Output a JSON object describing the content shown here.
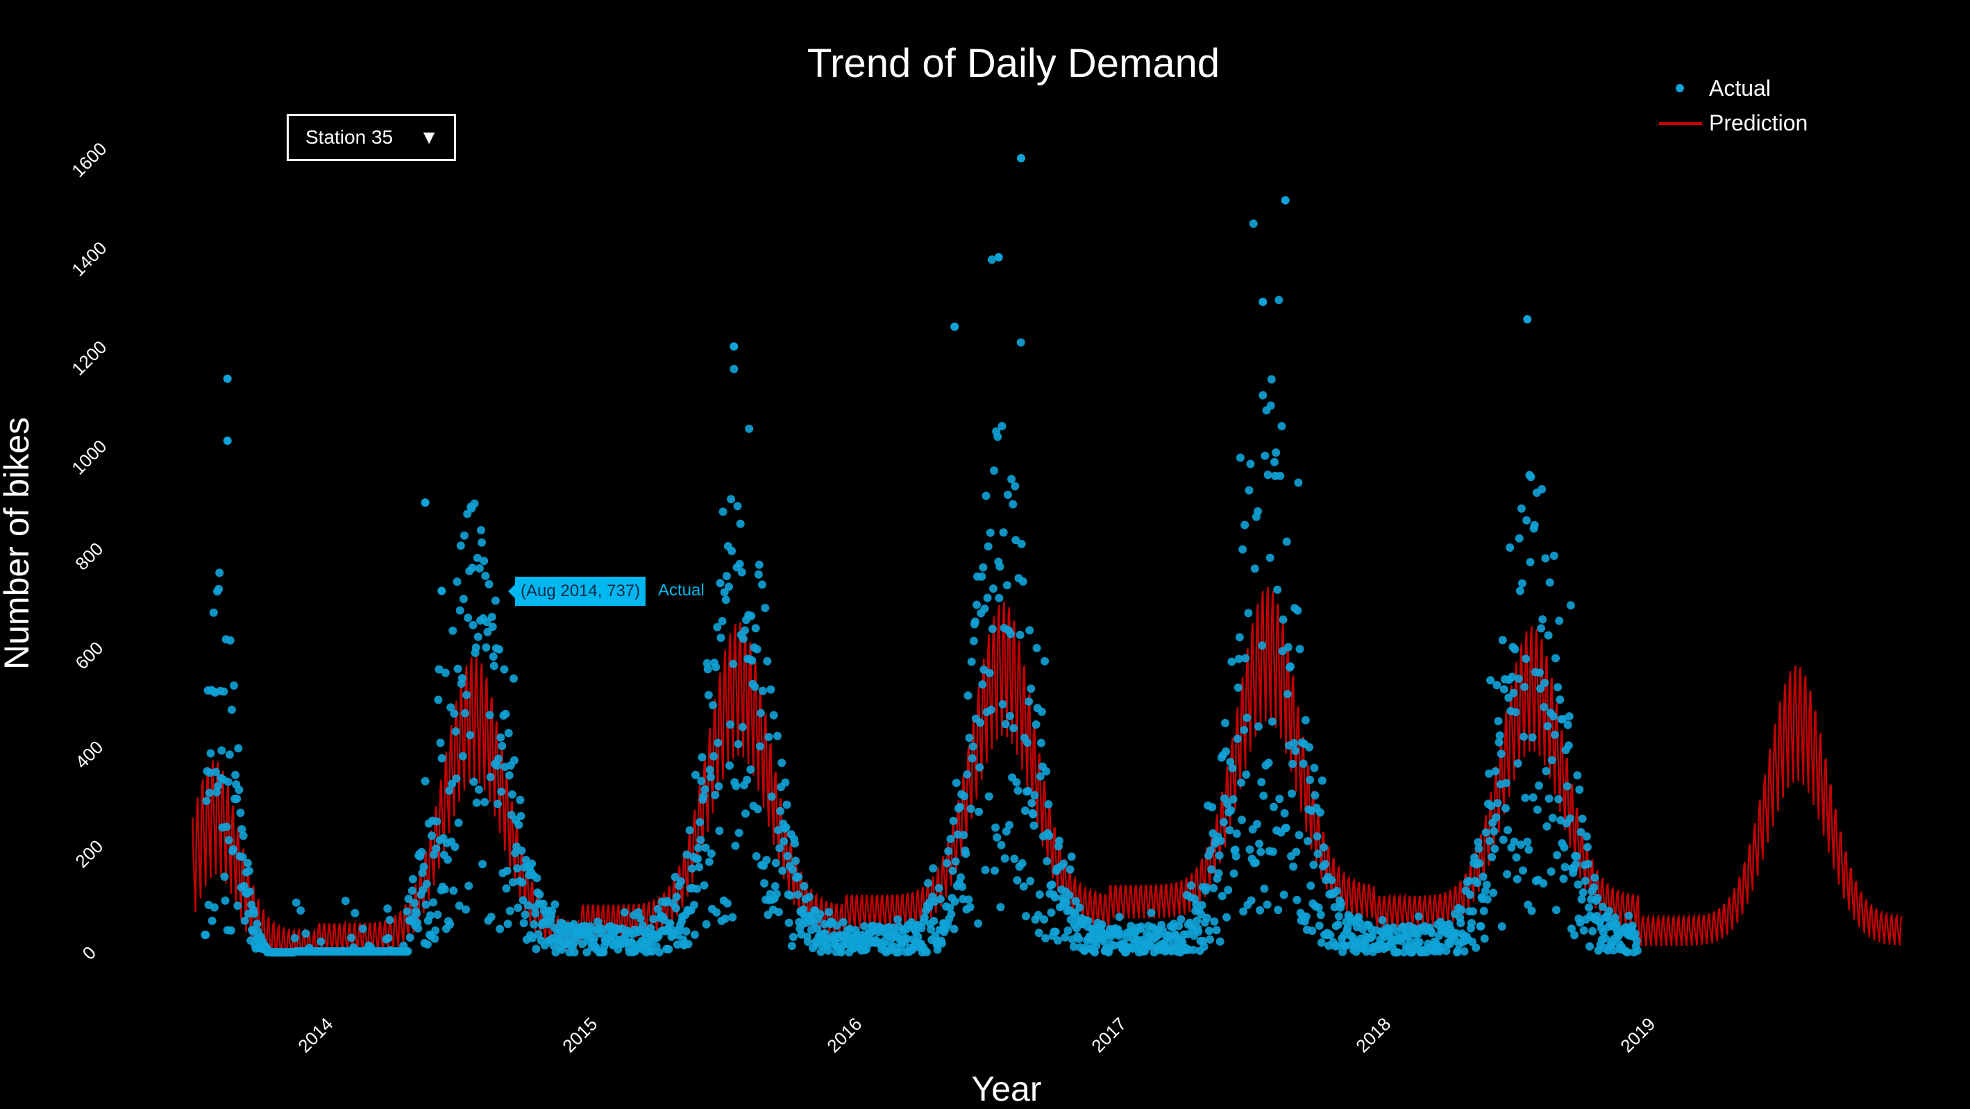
{
  "chart_data": {
    "type": "scatter+line",
    "title": "Trend of Daily Demand",
    "xlabel": "Year",
    "ylabel": "Number of bikes",
    "x_ticks": [
      "2014",
      "2015",
      "2016",
      "2017",
      "2018",
      "2019"
    ],
    "y_ticks": [
      "0",
      "200",
      "400",
      "600",
      "800",
      "1000",
      "1200",
      "1400",
      "1600"
    ],
    "ylim": [
      0,
      1600
    ],
    "xlim": [
      "2013-07-15",
      "2019-12-31"
    ],
    "legend": {
      "placement": "top-right",
      "entries": [
        "Actual",
        "Prediction"
      ]
    },
    "series": [
      {
        "name": "Actual",
        "kind": "markers",
        "color": "#0fa3d8",
        "date_range": [
          "2013-08-01",
          "2018-12-31"
        ],
        "seasonal_peaks": [
          {
            "year": 2013,
            "peak_month": "Aug",
            "typical": 250,
            "max": 1165
          },
          {
            "year": 2014,
            "peak_month": "Aug",
            "typical": 420,
            "max": 915
          },
          {
            "year": 2015,
            "peak_month": "Aug",
            "typical": 470,
            "max": 1230
          },
          {
            "year": 2016,
            "peak_month": "Aug",
            "typical": 520,
            "max": 1610
          },
          {
            "year": 2017,
            "peak_month": "Aug",
            "typical": 560,
            "max": 1525
          },
          {
            "year": 2018,
            "peak_month": "Aug",
            "typical": 480,
            "max": 1285
          }
        ],
        "highlighted": [
          {
            "x": "2016-09-01",
            "y": 1610
          },
          {
            "x": "2017-09-01",
            "y": 1525
          },
          {
            "x": "2016-08-01",
            "y": 1410
          },
          {
            "x": "2017-08-01",
            "y": 1320
          },
          {
            "x": "2018-08-01",
            "y": 1285
          },
          {
            "x": "2015-08-01",
            "y": 1230
          },
          {
            "x": "2016-06-01",
            "y": 1270
          },
          {
            "x": "2013-09-01",
            "y": 1165
          },
          {
            "x": "2013-09-01",
            "y": 1040
          },
          {
            "x": "2014-06-01",
            "y": 915
          }
        ]
      },
      {
        "name": "Prediction",
        "kind": "line",
        "color": "#cc0000",
        "date_range": [
          "2013-07-15",
          "2019-12-31"
        ],
        "seasonal_levels": [
          {
            "year": 2013,
            "summer_center": 270,
            "amplitude": 130
          },
          {
            "year": 2014,
            "summer_center": 480,
            "amplitude": 140,
            "winter_center": 35
          },
          {
            "year": 2015,
            "summer_center": 540,
            "amplitude": 150,
            "winter_center": 70
          },
          {
            "year": 2016,
            "summer_center": 580,
            "amplitude": 150,
            "winter_center": 90
          },
          {
            "year": 2017,
            "summer_center": 610,
            "amplitude": 150,
            "winter_center": 110
          },
          {
            "year": 2018,
            "summer_center": 540,
            "amplitude": 140,
            "winter_center": 90
          },
          {
            "year": 2019,
            "summer_center": 470,
            "amplitude": 130,
            "winter_center": 50
          }
        ]
      }
    ],
    "hover": {
      "label": "(Aug 2014, 737)",
      "series": "Actual",
      "x": "2014-08-01",
      "y": 737
    }
  },
  "dropdown": {
    "label": "Station 35",
    "arrow": "▼"
  },
  "colors": {
    "background": "#000000",
    "actual": "#0fa3d8",
    "prediction": "#cc0000",
    "tooltip": "#00b8f0"
  }
}
